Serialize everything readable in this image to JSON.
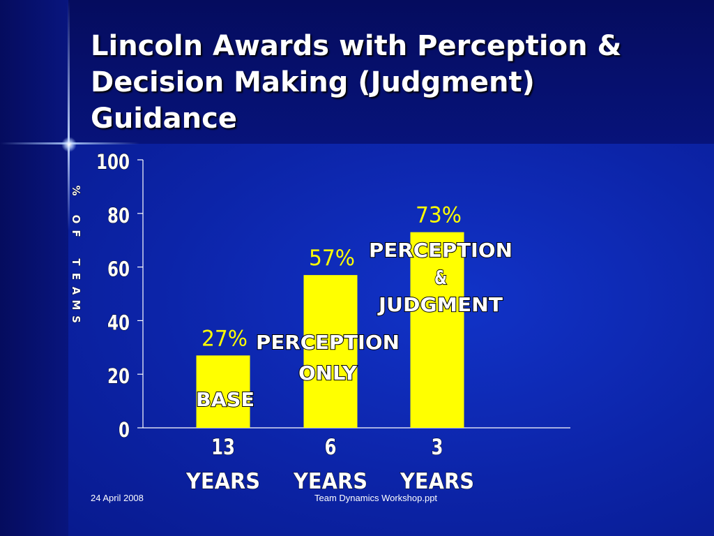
{
  "slide": {
    "title_lines": [
      "Lincoln Awards with Perception &",
      "Decision Making (Judgment)",
      "Guidance"
    ],
    "footer_date": "24 April 2008",
    "footer_file": "Team Dynamics Workshop.ppt"
  },
  "colors": {
    "background": "#0a1d8c",
    "bar_fill": "#ffff00",
    "value_label": "#ffff00",
    "text": "#ffffff"
  },
  "chart_data": {
    "type": "bar",
    "title": "",
    "ylabel": "% OF TEAMS",
    "xlabel": "",
    "ylim": [
      0,
      100
    ],
    "yticks": [
      "0",
      "20",
      "40",
      "60",
      "80",
      "100"
    ],
    "grid": false,
    "categories": [
      [
        "13",
        "YEARS"
      ],
      [
        "6",
        "YEARS"
      ],
      [
        "3",
        "YEARS"
      ]
    ],
    "values": [
      27,
      57,
      73
    ],
    "data_labels": [
      "27%",
      "57%",
      "73%"
    ],
    "annotations": [
      [
        "BASE"
      ],
      [
        "PERCEPTION",
        "ONLY"
      ],
      [
        "PERCEPTION",
        "&",
        "JUDGMENT"
      ]
    ]
  }
}
